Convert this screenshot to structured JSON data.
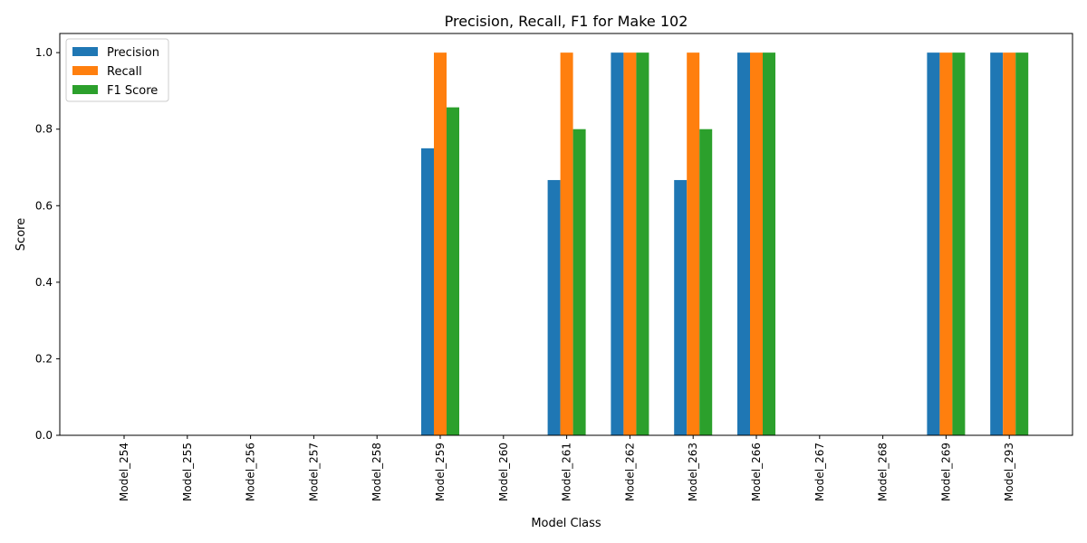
{
  "chart_data": {
    "type": "bar",
    "title": "Precision, Recall, F1 for Make 102",
    "xlabel": "Model Class",
    "ylabel": "Score",
    "ylim": [
      0,
      1.05
    ],
    "yticks": [
      0.0,
      0.2,
      0.4,
      0.6,
      0.8,
      1.0
    ],
    "ytick_labels": [
      "0.0",
      "0.2",
      "0.4",
      "0.6",
      "0.8",
      "1.0"
    ],
    "grid": false,
    "legend_position": "top-left",
    "categories": [
      "Model_254",
      "Model_255",
      "Model_256",
      "Model_257",
      "Model_258",
      "Model_259",
      "Model_260",
      "Model_261",
      "Model_262",
      "Model_263",
      "Model_266",
      "Model_267",
      "Model_268",
      "Model_269",
      "Model_293"
    ],
    "series": [
      {
        "name": "Precision",
        "color": "#1f77b4",
        "values": [
          0,
          0,
          0,
          0,
          0,
          0.75,
          0,
          0.667,
          1.0,
          0.667,
          1.0,
          0,
          0,
          1.0,
          1.0
        ]
      },
      {
        "name": "Recall",
        "color": "#ff7f0e",
        "values": [
          0,
          0,
          0,
          0,
          0,
          1.0,
          0,
          1.0,
          1.0,
          1.0,
          1.0,
          0,
          0,
          1.0,
          1.0
        ]
      },
      {
        "name": "F1 Score",
        "color": "#2ca02c",
        "values": [
          0,
          0,
          0,
          0,
          0,
          0.857,
          0,
          0.8,
          1.0,
          0.8,
          1.0,
          0,
          0,
          1.0,
          1.0
        ]
      }
    ]
  }
}
